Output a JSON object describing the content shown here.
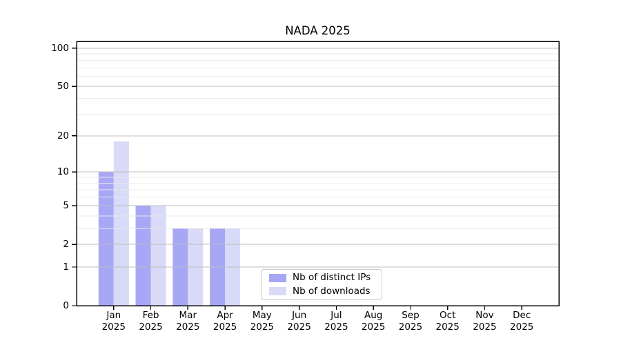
{
  "title": "NADA 2025",
  "colors": {
    "distinct_ips": "#a7a7f6",
    "downloads": "#d9d9f8",
    "grid_major": "#bdbdbd",
    "grid_minor": "#e9e9e9",
    "axis": "#000000",
    "legend_border": "#c9c9c9",
    "background": "#ffffff",
    "text": "#000000"
  },
  "chart_data": {
    "type": "bar",
    "title": "NADA 2025",
    "categories": [
      "Jan",
      "Feb",
      "Mar",
      "Apr",
      "May",
      "Jun",
      "Jul",
      "Aug",
      "Sep",
      "Oct",
      "Nov",
      "Dec"
    ],
    "x_tick_second_line": "2025",
    "series": [
      {
        "name": "Nb of distinct IPs",
        "color_key": "distinct_ips",
        "values": [
          10,
          5,
          3,
          3,
          0,
          0,
          0,
          0,
          0,
          0,
          0,
          0
        ]
      },
      {
        "name": "Nb of downloads",
        "color_key": "downloads",
        "values": [
          18,
          5,
          3,
          3,
          0,
          0,
          0,
          0,
          0,
          0,
          0,
          0
        ]
      }
    ],
    "yscale": "log10(1+y)",
    "ylim": [
      0,
      114
    ],
    "y_major_ticks": [
      0,
      1,
      2,
      5,
      10,
      20,
      50,
      100
    ],
    "y_minor_ticks": [
      3,
      4,
      6,
      7,
      8,
      9,
      30,
      40,
      60,
      70,
      80,
      90
    ],
    "grid": "both",
    "legend_position": "lower center"
  }
}
